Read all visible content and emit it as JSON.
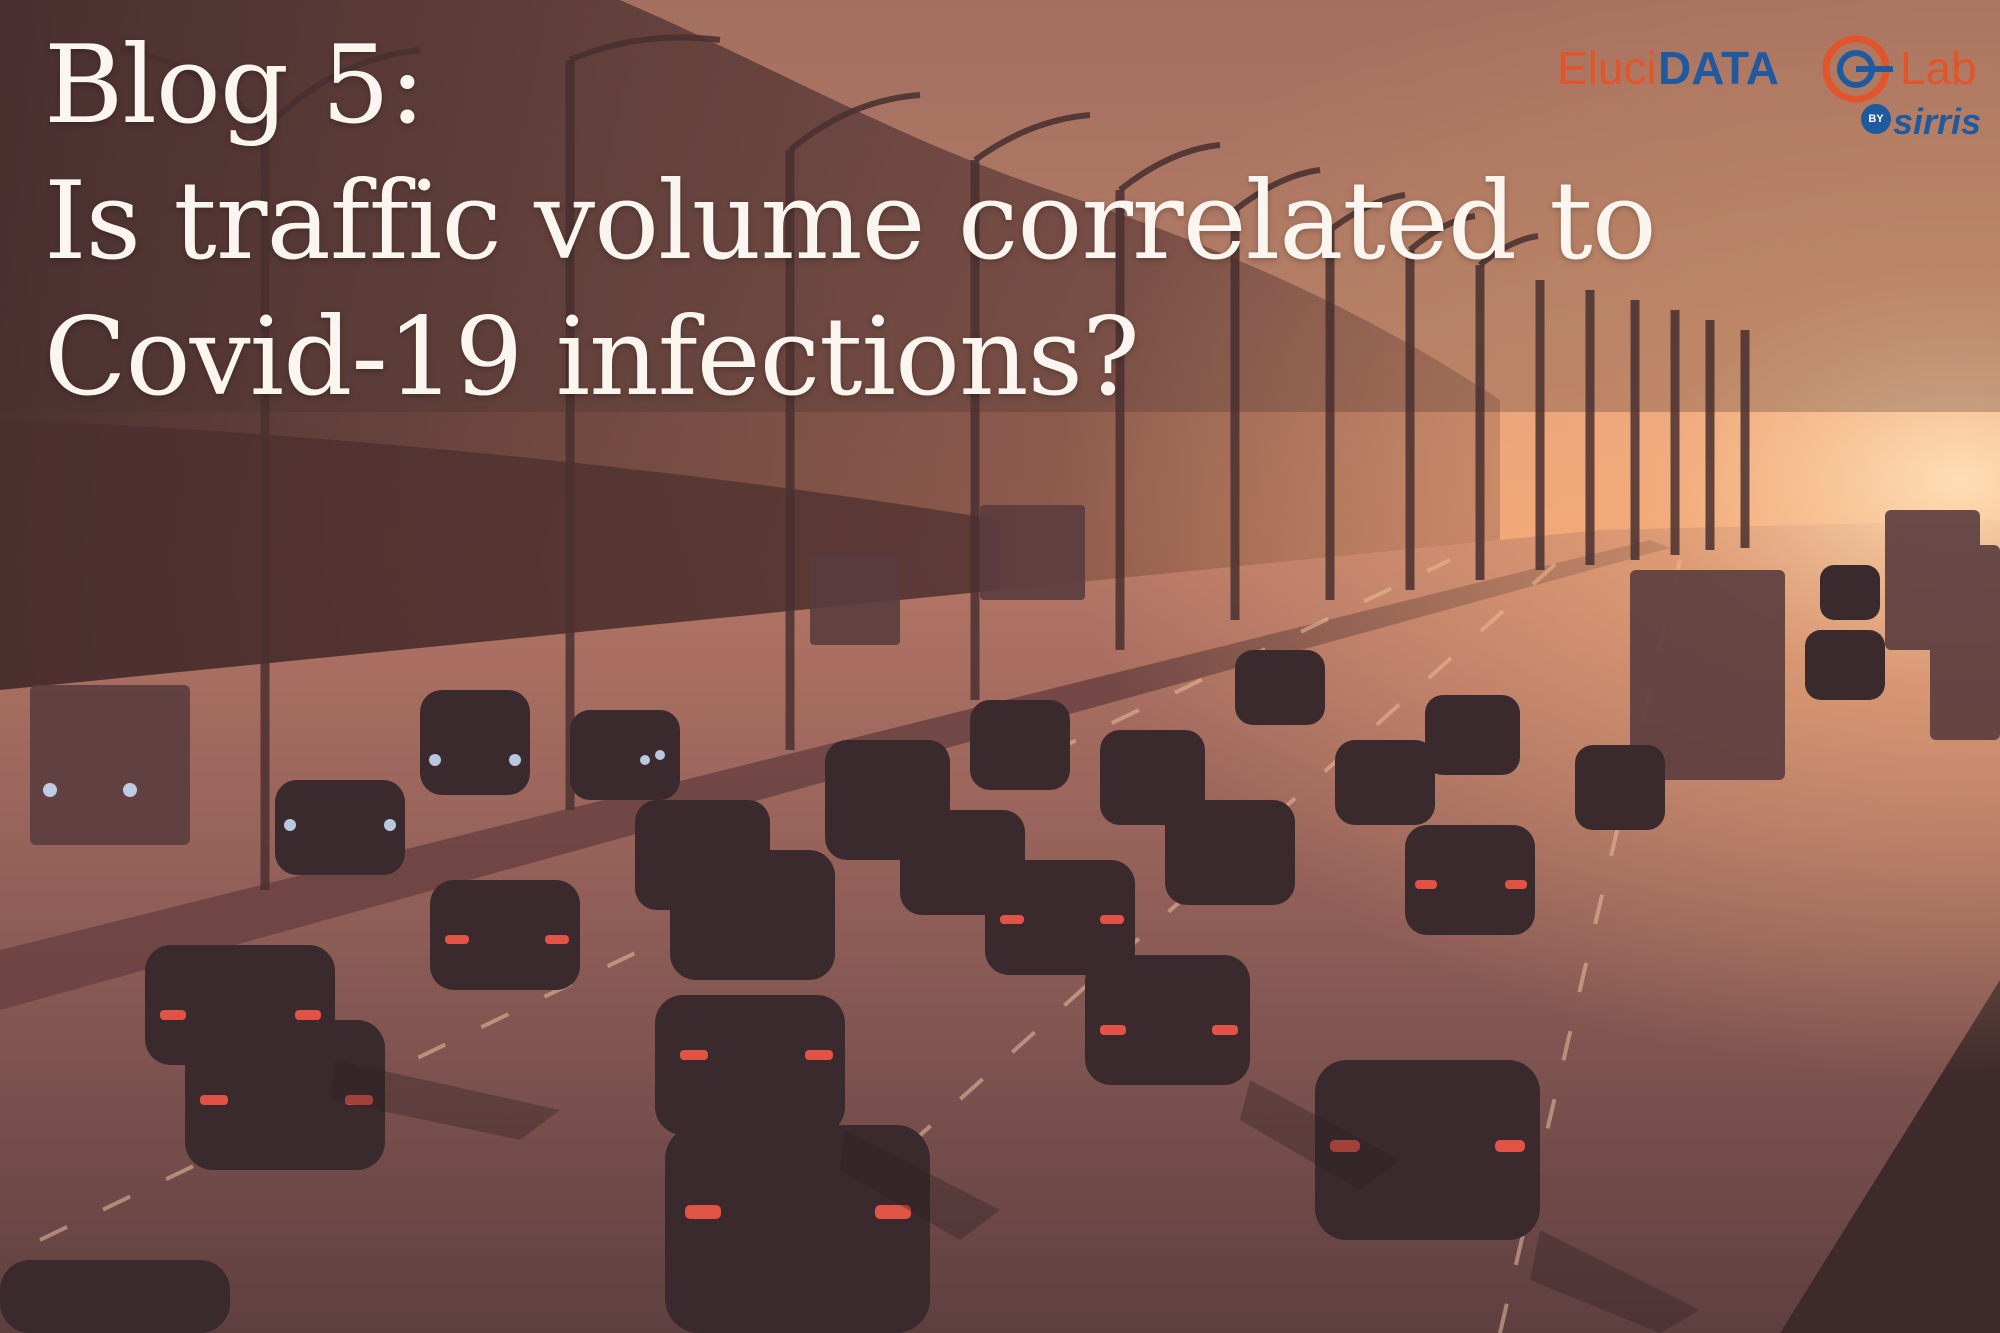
{
  "title": {
    "line1": "Blog 5:",
    "line2": "Is traffic volume correlated to",
    "line3": "Covid-19 infections?"
  },
  "logo": {
    "part1": "Eluci",
    "part2": "DATA",
    "part3": "Lab",
    "by": "BY",
    "sponsor": "sirris"
  },
  "colors": {
    "logo_orange": "#e2552a",
    "logo_blue": "#1f5aa0",
    "title_text": "#fbf5ef",
    "sunset_glow": "#f2a070"
  }
}
